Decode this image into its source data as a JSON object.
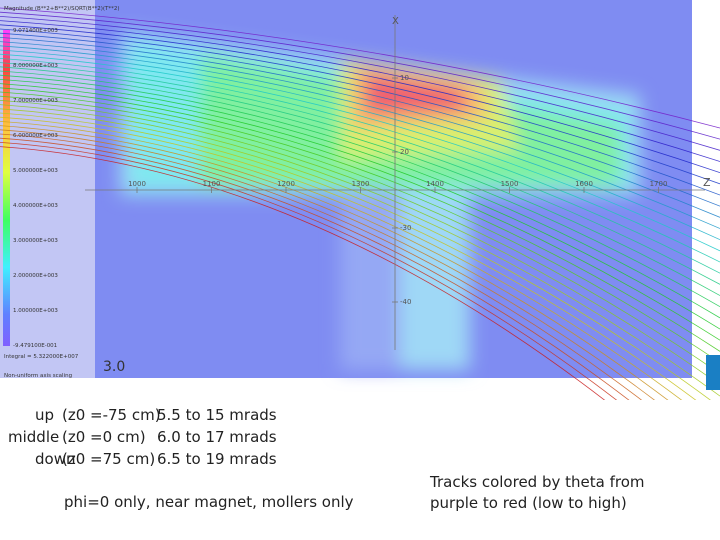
{
  "figure": {
    "colorbar_title": "Magnitude (B**2+B**2)/SQRT(B**2)(T**2)",
    "colorbar_labels": [
      "9.071400E+003",
      "8.000000E+003",
      "7.000000E+003",
      "6.000000E+003",
      "5.000000E+003",
      "4.000000E+003",
      "3.000000E+003",
      "2.000000E+003",
      "1.000000E+003",
      "-9.479100E-001"
    ],
    "integral": "Integral = 5.322000E+007",
    "scaling": "Non-uniform axis scaling",
    "z_axis_label": "Z",
    "x_axis_label": "X",
    "z_ticks": [
      "1000",
      "1100",
      "1200",
      "1300",
      "1400",
      "1500",
      "1600",
      "1700"
    ],
    "x_ticks": [
      "10",
      "20",
      "-30",
      "-40"
    ],
    "overlay_label": "3.0"
  },
  "notes": {
    "rows": [
      [
        "up",
        "(z0 =-75 cm)",
        "5.5 to 15 mrads"
      ],
      [
        "middle",
        "(z0 =0 cm)",
        "6.0 to 17 mrads"
      ],
      [
        "down",
        "(z0 =75 cm)",
        "6.5 to 19 mrads"
      ]
    ],
    "phi_note": "phi=0 only, near magnet, mollers only",
    "color_note": [
      "Tracks colored by theta from",
      "purple to red (low to high)"
    ]
  }
}
